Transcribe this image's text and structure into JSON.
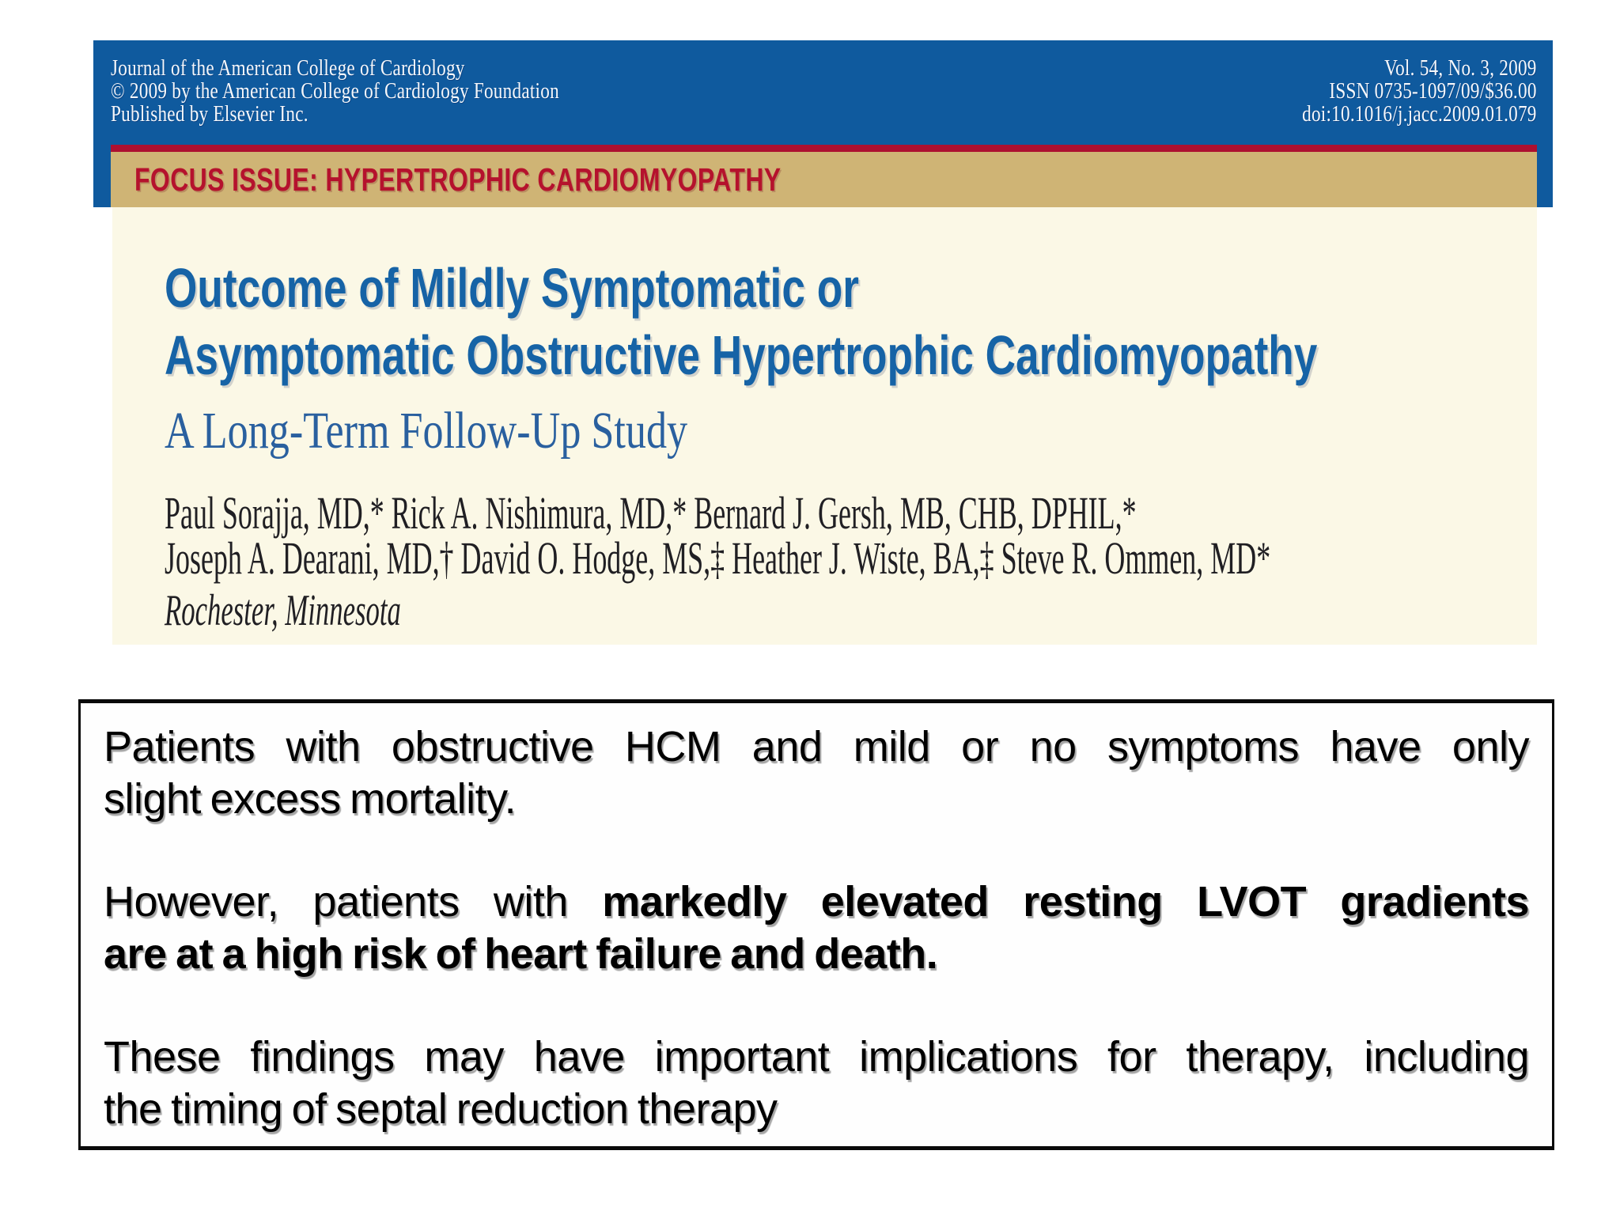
{
  "masthead": {
    "left_lines": [
      "Journal of the American College of Cardiology",
      "© 2009 by the American College of Cardiology Foundation",
      "Published by Elsevier Inc."
    ],
    "right_lines": [
      "Vol. 54, No. 3, 2009",
      "ISSN 0735-1097/09/$36.00",
      "doi:10.1016/j.jacc.2009.01.079"
    ]
  },
  "focus_banner": {
    "label": "FOCUS ISSUE: HYPERTROPHIC CARDIOMYOPATHY"
  },
  "article": {
    "title_lines": [
      "Outcome of Mildly Symptomatic or",
      "Asymptomatic Obstructive Hypertrophic Cardiomyopathy"
    ],
    "subtitle": "A Long-Term Follow-Up Study",
    "author_lines": [
      "Paul Sorajja, MD,* Rick A. Nishimura, MD,* Bernard J. Gersh, MB, CHB, DPHIL,*",
      "Joseph A. Dearani, MD,† David O. Hodge, MS,‡ Heather J. Wiste, BA,‡ Steve R. Ommen, MD*"
    ],
    "location": "Rochester, Minnesota"
  },
  "summary_box": {
    "p1_lines": [
      "Patients with obstructive HCM and mild or no symptoms have only",
      "slight excess mortality."
    ],
    "p2_line1_normal": "However, patients with ",
    "p2_line1_bold": "markedly elevated resting LVOT gradients",
    "p2_line2_bold": "are at a high risk of heart failure and death.",
    "p3_lines": [
      "These findings may have important implications for therapy, including",
      "the timing of septal reduction therapy"
    ]
  },
  "colors": {
    "header_blue": "#0f5a9e",
    "accent_red": "#ad1030",
    "banner_tan": "#cfb475",
    "cream_background": "#fbf8e6",
    "title_blue": "#1663a6",
    "subtitle_blue": "#2a609f"
  }
}
